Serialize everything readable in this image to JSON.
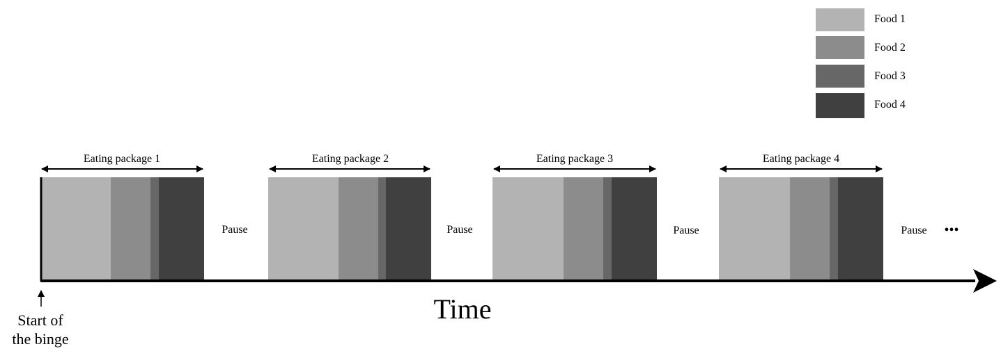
{
  "legend": [
    {
      "label": "Food 1",
      "color": "#b3b3b3"
    },
    {
      "label": "Food 2",
      "color": "#8c8c8c"
    },
    {
      "label": "Food 3",
      "color": "#676767"
    },
    {
      "label": "Food 4",
      "color": "#404040"
    }
  ],
  "packages": [
    {
      "label": "Eating package 1"
    },
    {
      "label": "Eating package 2"
    },
    {
      "label": "Eating package 3"
    },
    {
      "label": "Eating package 4"
    }
  ],
  "pauses": [
    "Pause",
    "Pause",
    "Pause",
    "Pause"
  ],
  "ellipsis": "•••",
  "axis": {
    "label": "Time"
  },
  "start": {
    "line1": "Start of",
    "line2": "the binge"
  }
}
